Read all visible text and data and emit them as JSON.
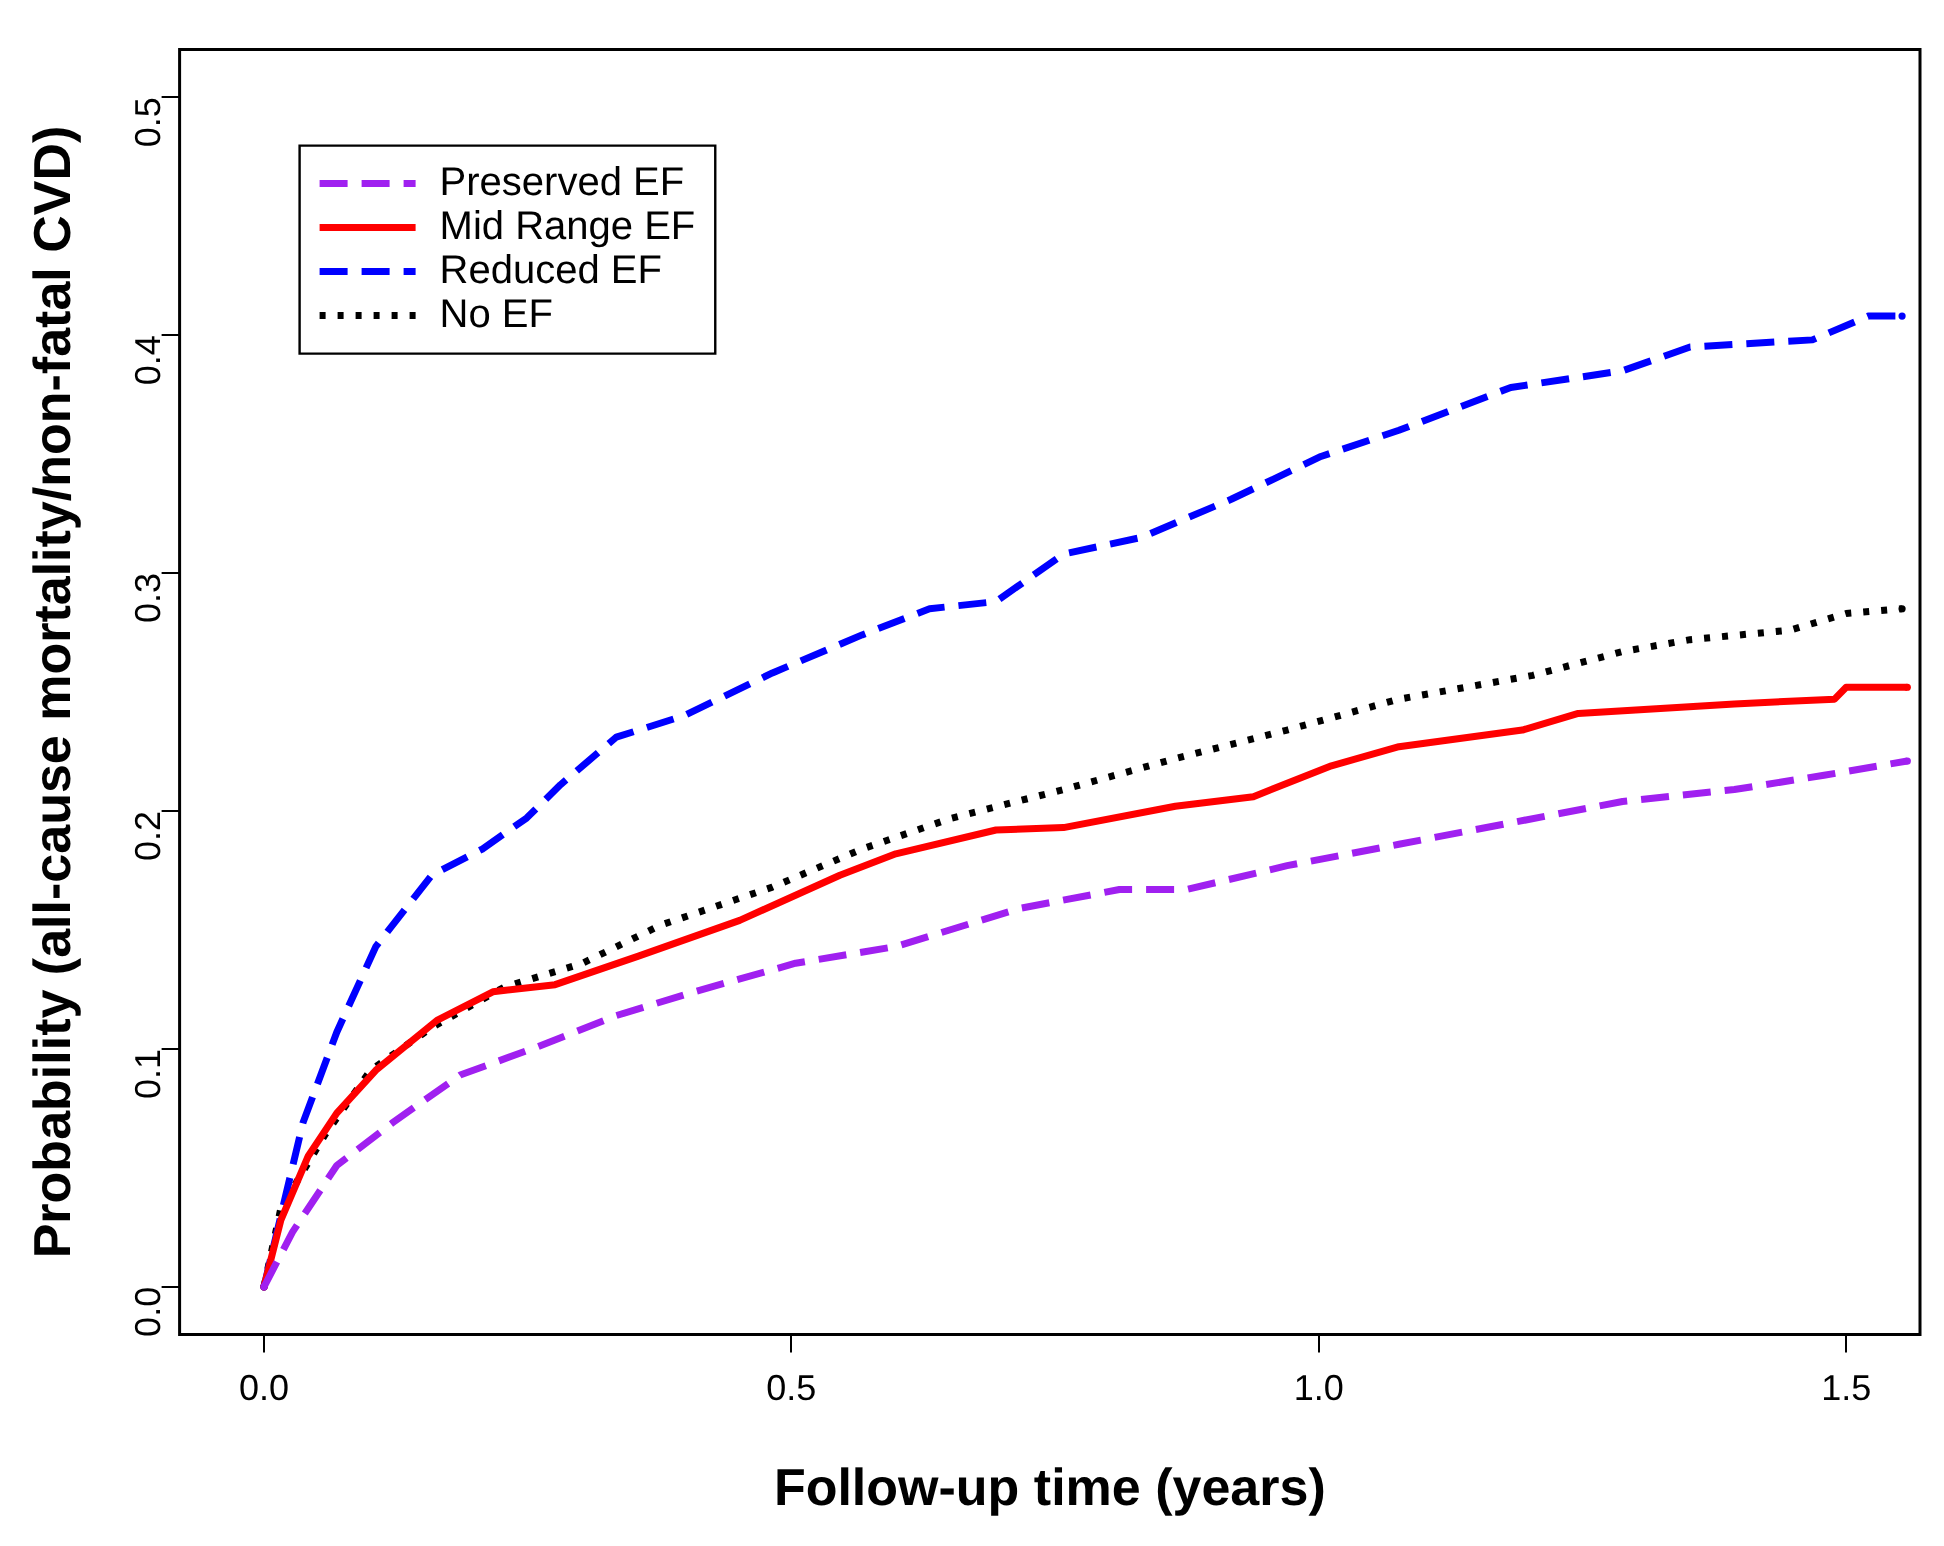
{
  "chart_data": {
    "type": "line",
    "xlabel": "Follow-up time (years)",
    "ylabel": "Probability (all-cause mortality/non-fatal CVD)",
    "xlim": [
      -0.08,
      1.57
    ],
    "ylim": [
      -0.02,
      0.52
    ],
    "xticks": [
      {
        "value": 0,
        "label": "0.0"
      },
      {
        "value": 0.5,
        "label": "0.5"
      },
      {
        "value": 1,
        "label": "1.0"
      },
      {
        "value": 1.5,
        "label": "1.5"
      }
    ],
    "yticks": [
      {
        "value": 0,
        "label": "0.0"
      },
      {
        "value": 0.1,
        "label": "0.1"
      },
      {
        "value": 0.2,
        "label": "0.2"
      },
      {
        "value": 0.3,
        "label": "0.3"
      },
      {
        "value": 0.4,
        "label": "0.4"
      },
      {
        "value": 0.5,
        "label": "0.5"
      }
    ],
    "grid": false,
    "legend": "top left",
    "series": [
      {
        "name": "Preserved EF",
        "color": "#a020f0",
        "line_style": "dashed",
        "x": [
          0,
          0.027,
          0.069,
          0.122,
          0.186,
          0.26,
          0.334,
          0.408,
          0.504,
          0.599,
          0.716,
          0.811,
          0.875,
          0.97,
          1.076,
          1.182,
          1.288,
          1.394,
          1.479,
          1.558
        ],
        "values": [
          0,
          0.023,
          0.051,
          0.069,
          0.089,
          0.101,
          0.114,
          0.124,
          0.136,
          0.143,
          0.159,
          0.167,
          0.167,
          0.177,
          0.186,
          0.195,
          0.204,
          0.209,
          0.215,
          0.221
        ]
      },
      {
        "name": "Mid Range EF",
        "color": "#ff0000",
        "line_style": "solid",
        "x": [
          0,
          0.016,
          0.042,
          0.069,
          0.106,
          0.164,
          0.217,
          0.276,
          0.355,
          0.451,
          0.546,
          0.599,
          0.694,
          0.758,
          0.864,
          0.938,
          1.012,
          1.076,
          1.193,
          1.246,
          1.394,
          1.489,
          1.5,
          1.558
        ],
        "values": [
          0,
          0.028,
          0.055,
          0.073,
          0.091,
          0.112,
          0.124,
          0.127,
          0.139,
          0.154,
          0.173,
          0.182,
          0.192,
          0.193,
          0.202,
          0.206,
          0.219,
          0.227,
          0.234,
          0.241,
          0.245,
          0.247,
          0.252,
          0.252
        ]
      },
      {
        "name": "Reduced EF",
        "color": "#0000ff",
        "line_style": "dashed",
        "x": [
          0,
          0.037,
          0.069,
          0.106,
          0.159,
          0.207,
          0.249,
          0.281,
          0.334,
          0.398,
          0.482,
          0.567,
          0.631,
          0.694,
          0.758,
          0.832,
          0.917,
          1.002,
          1.076,
          1.182,
          1.288,
          1.352,
          1.468,
          1.521,
          1.553
        ],
        "values": [
          0,
          0.069,
          0.107,
          0.143,
          0.173,
          0.184,
          0.197,
          0.211,
          0.231,
          0.24,
          0.258,
          0.274,
          0.285,
          0.288,
          0.308,
          0.315,
          0.331,
          0.349,
          0.36,
          0.378,
          0.385,
          0.395,
          0.398,
          0.408,
          0.408
        ]
      },
      {
        "name": "No EF",
        "color": "#000000",
        "line_style": "dotted",
        "x": [
          0,
          0.016,
          0.058,
          0.101,
          0.159,
          0.228,
          0.302,
          0.376,
          0.482,
          0.567,
          0.652,
          0.758,
          0.864,
          0.97,
          1.076,
          1.203,
          1.288,
          1.352,
          1.447,
          1.5,
          1.553
        ],
        "values": [
          0,
          0.033,
          0.064,
          0.091,
          0.109,
          0.126,
          0.136,
          0.152,
          0.168,
          0.184,
          0.197,
          0.209,
          0.222,
          0.234,
          0.247,
          0.257,
          0.267,
          0.272,
          0.276,
          0.283,
          0.285
        ]
      }
    ]
  }
}
